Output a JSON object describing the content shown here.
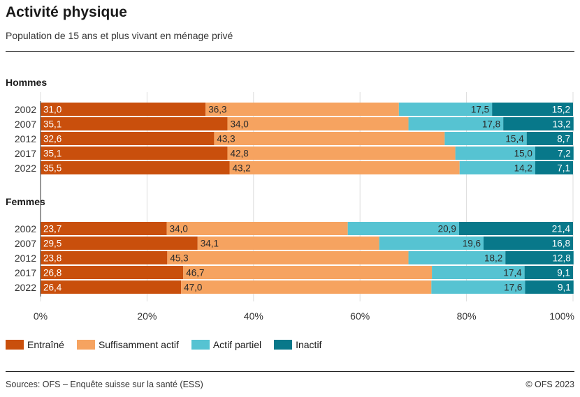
{
  "title": "Activité physique",
  "subtitle": "Population de 15 ans et plus vivant en ménage privé",
  "source": "Sources: OFS – Enquête suisse sur la santé (ESS)",
  "copyright": "© OFS 2023",
  "colors": {
    "entraine": "#c94f0c",
    "suffisamment_actif": "#f6a360",
    "actif_partiel": "#56c3d2",
    "inactif": "#08788a"
  },
  "chart_data": {
    "type": "bar",
    "orientation": "horizontal-stacked-100",
    "title": "Activité physique",
    "xlim": [
      0,
      100
    ],
    "x_ticks": [
      "0%",
      "20%",
      "40%",
      "60%",
      "80%",
      "100%"
    ],
    "x_tick_values": [
      0,
      20,
      40,
      60,
      80,
      100
    ],
    "series_names": [
      "Entraîné",
      "Suffisamment actif",
      "Actif partiel",
      "Inactif"
    ],
    "panels": [
      {
        "label": "Hommes",
        "categories": [
          "2002",
          "2007",
          "2012",
          "2017",
          "2022"
        ],
        "series": [
          {
            "name": "Entraîné",
            "values": [
              31.0,
              35.1,
              32.6,
              35.1,
              35.5
            ],
            "labels": [
              "31,0",
              "35,1",
              "32,6",
              "35,1",
              "35,5"
            ]
          },
          {
            "name": "Suffisamment actif",
            "values": [
              36.3,
              34.0,
              43.3,
              42.8,
              43.2
            ],
            "labels": [
              "36,3",
              "34,0",
              "43,3",
              "42,8",
              "43,2"
            ]
          },
          {
            "name": "Actif partiel",
            "values": [
              17.5,
              17.8,
              15.4,
              15.0,
              14.2
            ],
            "labels": [
              "17,5",
              "17,8",
              "15,4",
              "15,0",
              "14,2"
            ]
          },
          {
            "name": "Inactif",
            "values": [
              15.2,
              13.2,
              8.7,
              7.2,
              7.1
            ],
            "labels": [
              "15,2",
              "13,2",
              "8,7",
              "7,2",
              "7,1"
            ]
          }
        ]
      },
      {
        "label": "Femmes",
        "categories": [
          "2002",
          "2007",
          "2012",
          "2017",
          "2022"
        ],
        "series": [
          {
            "name": "Entraîné",
            "values": [
              23.7,
              29.5,
              23.8,
              26.8,
              26.4
            ],
            "labels": [
              "23,7",
              "29,5",
              "23,8",
              "26,8",
              "26,4"
            ]
          },
          {
            "name": "Suffisamment actif",
            "values": [
              34.0,
              34.1,
              45.3,
              46.7,
              47.0
            ],
            "labels": [
              "34,0",
              "34,1",
              "45,3",
              "46,7",
              "47,0"
            ]
          },
          {
            "name": "Actif partiel",
            "values": [
              20.9,
              19.6,
              18.2,
              17.4,
              17.6
            ],
            "labels": [
              "20,9",
              "19,6",
              "18,2",
              "17,4",
              "17,6"
            ]
          },
          {
            "name": "Inactif",
            "values": [
              21.4,
              16.8,
              12.8,
              9.1,
              9.1
            ],
            "labels": [
              "21,4",
              "16,8",
              "12,8",
              "9,1",
              "9,1"
            ]
          }
        ]
      }
    ]
  }
}
